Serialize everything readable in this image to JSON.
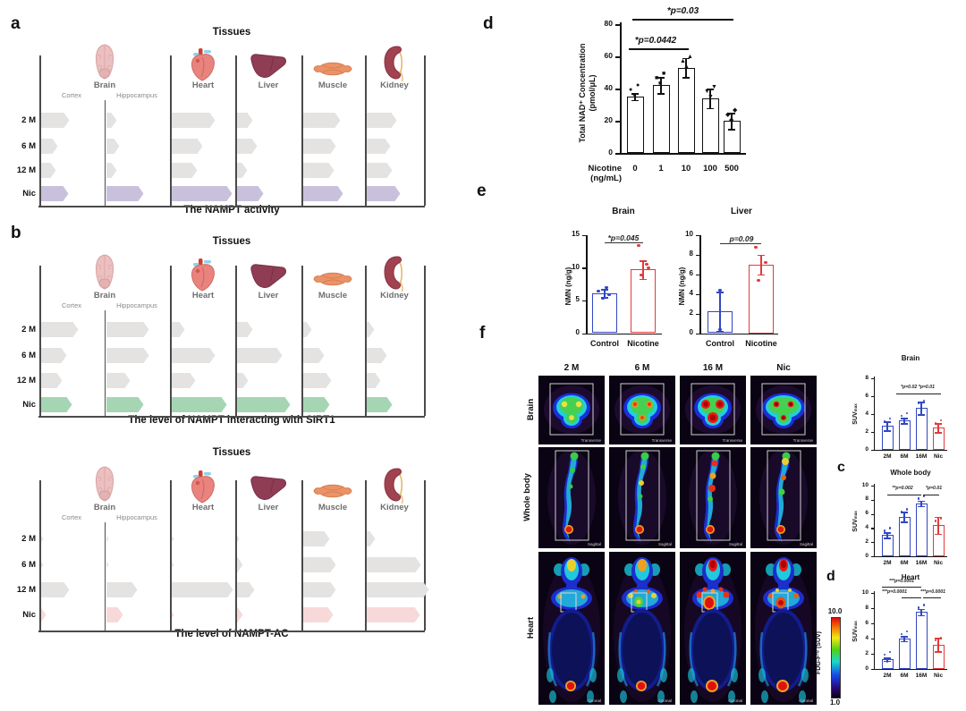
{
  "colors": {
    "nic_purple": "#c9c1dc",
    "nic_green": "#a6d5b4",
    "nic_pink": "#f7d9d9",
    "aged_gray": "#e4e3e2",
    "control_blue": "#3347c2",
    "nicotine_red": "#e23b3b"
  },
  "tissue_panels": [
    {
      "letter": "a",
      "title": "Tissues",
      "caption": "The NAMPT activity",
      "nic_color_key": "nic_purple",
      "row_labels": [
        "2 M",
        "6 M",
        "12 M",
        "Nic"
      ],
      "organ_labels": [
        "Brain",
        "Heart",
        "Liver",
        "Muscle",
        "Kidney"
      ],
      "brain_sublabels": [
        "Cortex",
        "Hippocampus"
      ],
      "sections": [
        {
          "label": "Cortex",
          "values": [
            45,
            26,
            23,
            43
          ]
        },
        {
          "label": "Hippocampus",
          "values": [
            16,
            21,
            17,
            59
          ]
        },
        {
          "label": "Heart",
          "values": [
            68,
            48,
            40,
            94
          ]
        },
        {
          "label": "Liver",
          "values": [
            25,
            32,
            17,
            41
          ]
        },
        {
          "label": "Muscle",
          "values": [
            58,
            52,
            48,
            62
          ]
        },
        {
          "label": "Kidney",
          "values": [
            47,
            37,
            40,
            53
          ]
        }
      ]
    },
    {
      "letter": "b",
      "title": "Tissues",
      "caption": "The level of NAMPT interacting with SIRT1",
      "nic_color_key": "nic_green",
      "row_labels": [
        "2 M",
        "6 M",
        "12 M",
        "Nic"
      ],
      "organ_labels": [
        "Brain",
        "Heart",
        "Liver",
        "Muscle",
        "Kidney"
      ],
      "brain_sublabels": [
        "Cortex",
        "Hippocampus"
      ],
      "sections": [
        {
          "label": "Cortex",
          "values": [
            59,
            40,
            33,
            49
          ]
        },
        {
          "label": "Hippocampus",
          "values": [
            66,
            66,
            37,
            59
          ]
        },
        {
          "label": "Heart",
          "values": [
            21,
            68,
            37,
            86
          ]
        },
        {
          "label": "Liver",
          "values": [
            25,
            71,
            18,
            84
          ]
        },
        {
          "label": "Muscle",
          "values": [
            14,
            34,
            44,
            42
          ]
        },
        {
          "label": "Kidney",
          "values": [
            12,
            32,
            22,
            40
          ]
        }
      ]
    },
    {
      "letter": "",
      "title": "Tissues",
      "caption": "The level of NAMPT-AC",
      "nic_color_key": "nic_pink",
      "row_labels": [
        "2 M",
        "6 M",
        "12 M",
        "Nic"
      ],
      "organ_labels": [
        "Brain",
        "Heart",
        "Liver",
        "Muscle",
        "Kidney"
      ],
      "brain_sublabels": [
        "Cortex",
        "Hippocampus"
      ],
      "sections": [
        {
          "label": "Cortex",
          "values": [
            3,
            3,
            45,
            8
          ]
        },
        {
          "label": "Hippocampus",
          "values": [
            3,
            3,
            48,
            26
          ]
        },
        {
          "label": "Heart",
          "values": [
            3,
            3,
            96,
            4
          ]
        },
        {
          "label": "Liver",
          "values": [
            3,
            10,
            28,
            10
          ]
        },
        {
          "label": "Muscle",
          "values": [
            41,
            52,
            52,
            47
          ]
        },
        {
          "label": "Kidney",
          "values": [
            14,
            85,
            97,
            83
          ]
        }
      ]
    }
  ],
  "panel_d": {
    "letter": "d",
    "ylabel": "Total NAD⁺ Concentration",
    "ylabel_units": "(pmol/μL)",
    "yticks": [
      80,
      60,
      40,
      20,
      0
    ],
    "xlabel": "Nicotine",
    "xlabel_units": "(ng/mL)",
    "categories": [
      "0",
      "1",
      "10",
      "100",
      "500"
    ],
    "values": [
      35,
      42,
      53,
      34,
      20
    ],
    "errors": [
      2,
      5,
      6,
      6,
      5
    ],
    "sig": [
      {
        "label": "*p=0.03",
        "compare": [
          "0",
          "500"
        ]
      },
      {
        "label": "*p=0.0442",
        "compare": [
          "0",
          "10"
        ]
      }
    ]
  },
  "panel_e": {
    "letter": "e",
    "charts": [
      {
        "title": "Brain",
        "ylabel": "NMN (ng/g)",
        "yticks": [
          15,
          10,
          5,
          0
        ],
        "ymax": 15,
        "categories": [
          "Control",
          "Nicotine"
        ],
        "values": [
          6.1,
          9.7
        ],
        "errors": [
          0.6,
          1.4
        ],
        "sig": "*p=0.045"
      },
      {
        "title": "Liver",
        "ylabel": "NMN (ng/g)",
        "yticks": [
          10,
          8,
          6,
          4,
          2,
          0
        ],
        "ymax": 10,
        "categories": [
          "Control",
          "Nicotine"
        ],
        "values": [
          2.2,
          7.0
        ],
        "errors": [
          2.0,
          1.0
        ],
        "sig": "p=0.09"
      }
    ]
  },
  "panel_f": {
    "letter": "f",
    "columns": [
      "2 M",
      "6 M",
      "16 M",
      "Nic"
    ],
    "rows": [
      "Brain",
      "Whole body",
      "Heart"
    ],
    "view_labels": [
      "Transverse",
      "Sagittal",
      "Coronal"
    ],
    "colorbar": {
      "max": "10.0",
      "min": "1.0",
      "label": "FDG-F¹⁸ (SUV)"
    }
  },
  "side_charts": [
    {
      "letter": "",
      "title": "Brain",
      "ylabel_base": "SUV",
      "ylabel_sub": "max",
      "yticks": [
        8,
        6,
        4,
        2,
        0
      ],
      "ymax": 8,
      "categories": [
        "2M",
        "6M",
        "16M",
        "Nic"
      ],
      "values": [
        2.7,
        3.3,
        4.7,
        2.5
      ],
      "errors": [
        0.5,
        0.3,
        0.7,
        0.5
      ],
      "sig": [
        "*p=0.02 *p=0.01"
      ]
    },
    {
      "letter": "c",
      "title": "Whole body",
      "ylabel_base": "SUV",
      "ylabel_sub": "max",
      "yticks": [
        10,
        8,
        6,
        4,
        2,
        0
      ],
      "ymax": 10,
      "categories": [
        "2M",
        "6M",
        "16M",
        "Nic"
      ],
      "values": [
        3.0,
        5.6,
        7.5,
        4.4
      ],
      "errors": [
        0.4,
        0.7,
        0.4,
        1.2
      ],
      "sig": [
        "**p=0.002",
        "*p=0.01"
      ]
    },
    {
      "letter": "d",
      "title": "Heart",
      "ylabel_base": "SUV",
      "ylabel_sub": "max",
      "yticks": [
        10,
        8,
        6,
        4,
        2,
        0
      ],
      "ymax": 10,
      "categories": [
        "2M",
        "6M",
        "16M",
        "Nic"
      ],
      "values": [
        1.3,
        4.0,
        7.5,
        3.2
      ],
      "errors": [
        0.2,
        0.3,
        0.4,
        0.9
      ],
      "sig": [
        "***p=0.0001",
        "***p=0.0001",
        "***p=0.0001"
      ]
    }
  ],
  "chart_data": [
    {
      "type": "bar",
      "panel": "d",
      "title": "Total NAD⁺ Concentration (pmol/μL)",
      "xlabel": "Nicotine (ng/mL)",
      "categories": [
        "0",
        "1",
        "10",
        "100",
        "500"
      ],
      "values": [
        35,
        42,
        53,
        34,
        20
      ],
      "errors": [
        2,
        5,
        6,
        6,
        5
      ],
      "ylim": [
        0,
        80
      ],
      "annotations": [
        "*p=0.03 (0 vs 500)",
        "*p=0.0442 (0 vs 10)"
      ]
    },
    {
      "type": "bar",
      "panel": "e",
      "title": "Brain",
      "ylabel": "NMN (ng/g)",
      "categories": [
        "Control",
        "Nicotine"
      ],
      "values": [
        6.1,
        9.7
      ],
      "errors": [
        0.6,
        1.4
      ],
      "ylim": [
        0,
        15
      ],
      "annotations": [
        "*p=0.045"
      ]
    },
    {
      "type": "bar",
      "panel": "e",
      "title": "Liver",
      "ylabel": "NMN (ng/g)",
      "categories": [
        "Control",
        "Nicotine"
      ],
      "values": [
        2.2,
        7.0
      ],
      "errors": [
        2.0,
        1.0
      ],
      "ylim": [
        0,
        10
      ],
      "annotations": [
        "p=0.09"
      ]
    },
    {
      "type": "bar",
      "panel": "f-brain",
      "title": "Brain",
      "ylabel": "SUVmax",
      "categories": [
        "2M",
        "6M",
        "16M",
        "Nic"
      ],
      "values": [
        2.7,
        3.3,
        4.7,
        2.5
      ],
      "errors": [
        0.5,
        0.3,
        0.7,
        0.5
      ],
      "ylim": [
        0,
        8
      ],
      "annotations": [
        "*p=0.02",
        "*p=0.01"
      ]
    },
    {
      "type": "bar",
      "panel": "c",
      "title": "Whole body",
      "ylabel": "SUVmax",
      "categories": [
        "2M",
        "6M",
        "16M",
        "Nic"
      ],
      "values": [
        3.0,
        5.6,
        7.5,
        4.4
      ],
      "errors": [
        0.4,
        0.7,
        0.4,
        1.2
      ],
      "ylim": [
        0,
        10
      ],
      "annotations": [
        "**p=0.002",
        "*p=0.01"
      ]
    },
    {
      "type": "bar",
      "panel": "d2",
      "title": "Heart",
      "ylabel": "SUVmax",
      "categories": [
        "2M",
        "6M",
        "16M",
        "Nic"
      ],
      "values": [
        1.3,
        4.0,
        7.5,
        3.2
      ],
      "errors": [
        0.2,
        0.3,
        0.4,
        0.9
      ],
      "ylim": [
        0,
        10
      ],
      "annotations": [
        "***p=0.0001",
        "***p=0.0001",
        "***p=0.0001"
      ]
    }
  ]
}
